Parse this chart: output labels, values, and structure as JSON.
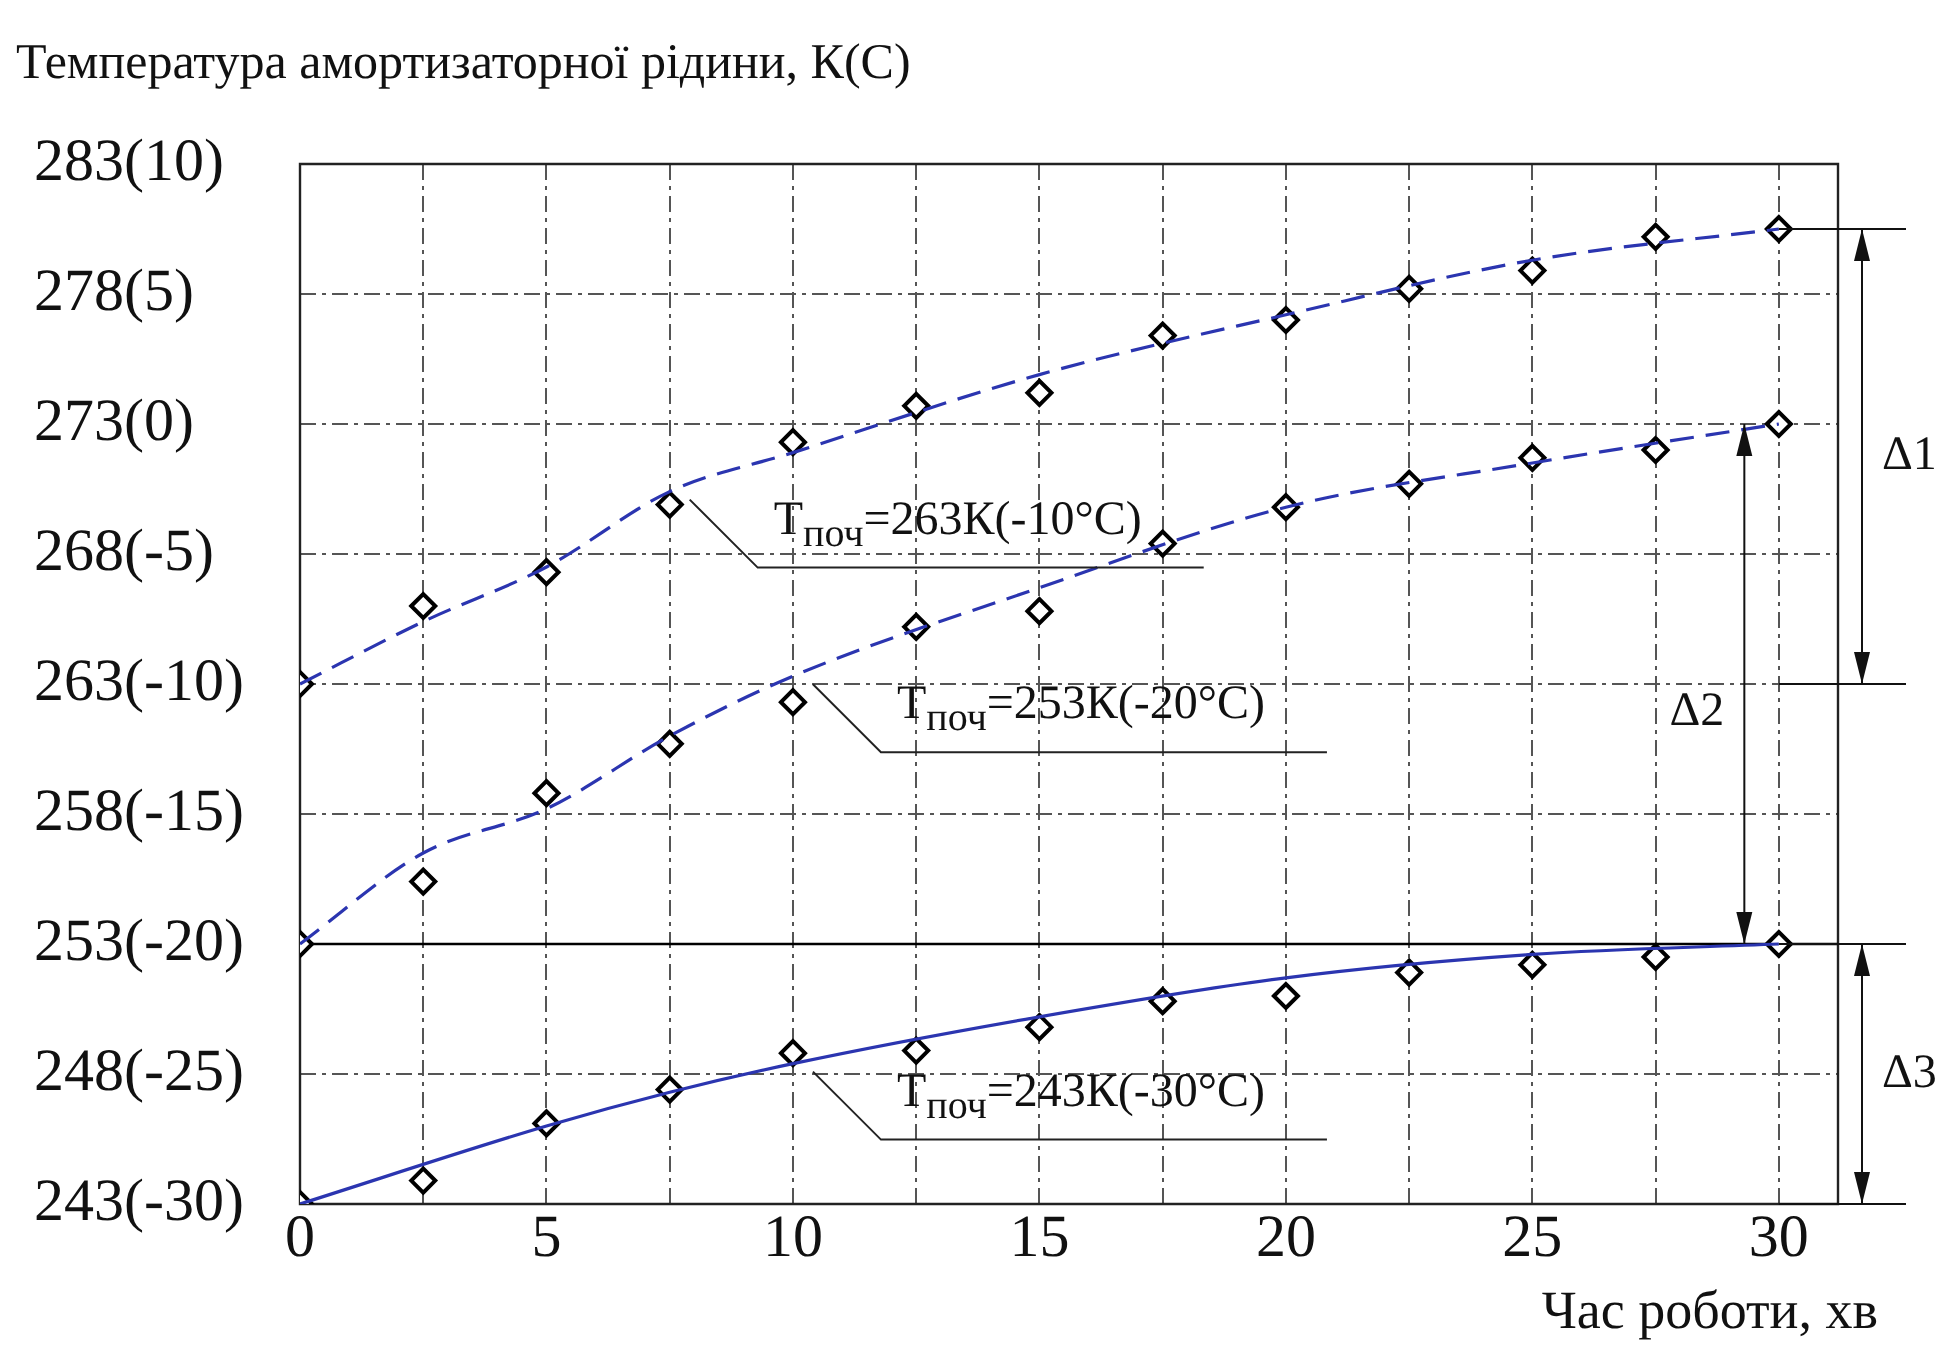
{
  "chart_data": {
    "type": "line",
    "title": "Температура амортизаторної рідини, К(С)",
    "xlabel": "Час роботи, хв",
    "xlim": [
      0,
      31.2
    ],
    "xticks": [
      0,
      {
        "value": 2.5,
        "label": null
      },
      5,
      {
        "value": 7.5,
        "label": null
      },
      10,
      {
        "value": 12.5,
        "label": null
      },
      15,
      {
        "value": 17.5,
        "label": null
      },
      20,
      {
        "value": 22.5,
        "label": null
      },
      25,
      {
        "value": 27.5,
        "label": null
      },
      30
    ],
    "ylim": [
      243,
      283
    ],
    "yticks": [
      243,
      248,
      253,
      258,
      263,
      268,
      273,
      278,
      283
    ],
    "y2lim": [
      -30,
      10
    ],
    "y2ticks": [
      {
        "value": -30,
        "label": "(-30)"
      },
      {
        "value": -25,
        "label": "(-25)"
      },
      {
        "value": -20,
        "label": "(-20)"
      },
      {
        "value": -15,
        "label": "(-15)"
      },
      {
        "value": -10,
        "label": "(-10)"
      },
      {
        "value": -5,
        "label": "(-5)"
      },
      {
        "value": 0,
        "label": "(0)"
      },
      {
        "value": 5,
        "label": "(5)"
      },
      {
        "value": 10,
        "label": "(10)"
      }
    ],
    "grid": true,
    "legend": false,
    "series": [
      {
        "color": "#2b35b0",
        "line_style": "dashed",
        "marker": "none",
        "x": [
          0,
          2.5,
          5,
          7.5,
          10,
          15,
          20,
          25,
          30
        ],
        "values": [
          263,
          265.4,
          267.5,
          270.4,
          271.9,
          274.9,
          277.2,
          279.3,
          280.5
        ]
      },
      {
        "color": "#2b35b0",
        "line_style": "dashed",
        "marker": "none",
        "x": [
          0,
          2.5,
          5,
          7.5,
          10,
          15,
          20,
          25,
          30
        ],
        "values": [
          253,
          256.5,
          258.2,
          261,
          263.3,
          266.7,
          269.8,
          271.5,
          273
        ]
      },
      {
        "color": "#2b35b0",
        "line_style": "solid",
        "marker": "none",
        "x": [
          0,
          5,
          7.5,
          10,
          15,
          20,
          25,
          30
        ],
        "values": [
          243,
          246,
          247.3,
          248.4,
          250.2,
          251.7,
          252.6,
          253
        ]
      },
      {
        "type": "scatter",
        "color": "#000000",
        "marker": "diamond",
        "x": [
          0,
          2.5,
          5,
          7.5,
          10,
          12.5,
          15,
          17.5,
          20,
          22.5,
          25,
          27.5,
          30
        ],
        "values": [
          263,
          266,
          267.3,
          269.9,
          272.3,
          273.7,
          274.2,
          276.4,
          277,
          278.2,
          278.9,
          280.2,
          280.5
        ]
      },
      {
        "type": "scatter",
        "color": "#000000",
        "marker": "diamond",
        "x": [
          0,
          2.5,
          5,
          7.5,
          10,
          12.5,
          15,
          17.5,
          20,
          22.5,
          25,
          27.5,
          30
        ],
        "values": [
          253,
          255.4,
          258.8,
          260.7,
          262.3,
          265.2,
          265.8,
          268.4,
          269.8,
          270.7,
          271.7,
          272,
          273
        ]
      },
      {
        "type": "scatter",
        "color": "#000000",
        "marker": "diamond",
        "x": [
          0,
          2.5,
          5,
          7.5,
          10,
          12.5,
          15,
          17.5,
          20,
          22.5,
          25,
          27.5,
          30
        ],
        "values": [
          243,
          243.9,
          246.1,
          247.4,
          248.8,
          248.9,
          249.8,
          250.8,
          251,
          251.9,
          252.2,
          252.5,
          253
        ]
      }
    ],
    "annotations": [
      "T$_{поч}$=263К(-10°C)",
      "T$_{поч}$=253К(-20°C)",
      "T$_{поч}$=243К(-30°C)",
      "Δ1",
      "Δ2",
      "Δ3"
    ],
    "ref_lines": [
      {
        "axis": "y",
        "value": 253,
        "color": "#000000",
        "line_style": "solid"
      }
    ]
  }
}
